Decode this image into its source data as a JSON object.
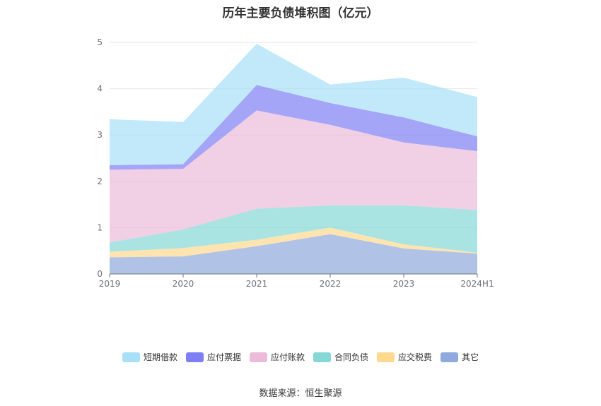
{
  "source_text": "数据来源：恒生聚源",
  "chart_data": {
    "type": "area",
    "stacked": true,
    "title": "历年主要负债堆积图（亿元）",
    "xlabel": "",
    "ylabel": "",
    "categories": [
      "2019",
      "2020",
      "2021",
      "2022",
      "2023",
      "2024H1"
    ],
    "ylim": [
      0,
      5
    ],
    "yticks": [
      0,
      1,
      2,
      3,
      4,
      5
    ],
    "grid": true,
    "legend_position": "bottom",
    "series": [
      {
        "name": "其它",
        "color": "#8faadc",
        "values": [
          0.36,
          0.38,
          0.6,
          0.86,
          0.55,
          0.44
        ]
      },
      {
        "name": "应交税费",
        "color": "#ffd98e",
        "values": [
          0.12,
          0.18,
          0.14,
          0.14,
          0.09,
          0.02
        ]
      },
      {
        "name": "合同负债",
        "color": "#85d8d6",
        "values": [
          0.2,
          0.4,
          0.67,
          0.48,
          0.84,
          0.92
        ]
      },
      {
        "name": "应付账款",
        "color": "#ebbbd9",
        "values": [
          1.57,
          1.31,
          2.12,
          1.74,
          1.36,
          1.27
        ]
      },
      {
        "name": "应付票据",
        "color": "#7f7ff5",
        "values": [
          0.1,
          0.1,
          0.55,
          0.47,
          0.54,
          0.32
        ]
      },
      {
        "name": "短期借款",
        "color": "#a7e0f8",
        "values": [
          0.99,
          0.91,
          0.89,
          0.4,
          0.86,
          0.85
        ]
      }
    ],
    "legend_order": [
      "短期借款",
      "应付票据",
      "应付账款",
      "合同负债",
      "应交税费",
      "其它"
    ]
  }
}
